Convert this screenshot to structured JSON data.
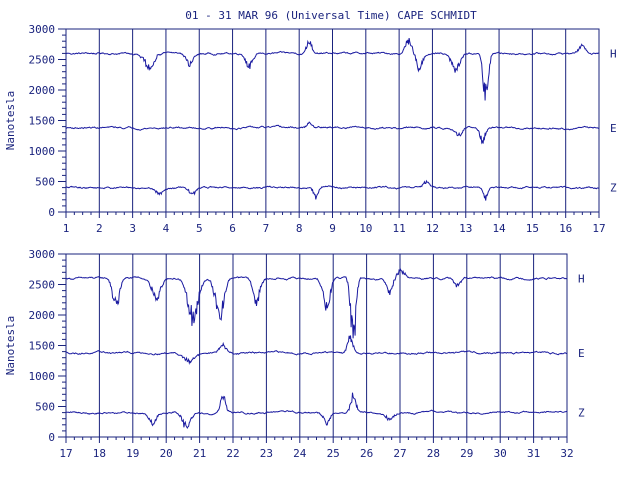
{
  "title": "01 - 31 MAR 96 (Universal Time) CAPE SCHMIDT",
  "colors": {
    "ink": "#1a237e",
    "trace": "#1a1aa0",
    "background": "#ffffff"
  },
  "chart_data": [
    {
      "type": "line",
      "ylabel": "Nanotesla",
      "ylim": [
        0,
        3000
      ],
      "yticks": [
        "0",
        "500",
        "1000",
        "1500",
        "2000",
        "2500",
        "3000"
      ],
      "xlim": [
        1,
        17
      ],
      "xticks": [
        "1",
        "2",
        "3",
        "4",
        "5",
        "6",
        "7",
        "8",
        "9",
        "10",
        "11",
        "12",
        "13",
        "14",
        "15",
        "16",
        "17"
      ],
      "series": [
        {
          "name": "H",
          "baseline": 2600,
          "events": [
            {
              "day": 3.5,
              "depth": -280,
              "width": 0.3
            },
            {
              "day": 4.7,
              "depth": -200,
              "width": 0.2
            },
            {
              "day": 6.5,
              "depth": -250,
              "width": 0.2
            },
            {
              "day": 8.3,
              "depth": 300,
              "width": 0.15
            },
            {
              "day": 11.3,
              "depth": 300,
              "width": 0.2
            },
            {
              "day": 11.6,
              "depth": -300,
              "width": 0.2
            },
            {
              "day": 12.7,
              "depth": -350,
              "width": 0.25
            },
            {
              "day": 13.6,
              "depth": -900,
              "width": 0.15
            },
            {
              "day": 16.5,
              "depth": 150,
              "width": 0.2
            }
          ]
        },
        {
          "name": "E",
          "baseline": 1380,
          "events": [
            {
              "day": 8.3,
              "depth": 100,
              "width": 0.15
            },
            {
              "day": 12.8,
              "depth": -120,
              "width": 0.2
            },
            {
              "day": 13.5,
              "depth": -280,
              "width": 0.15
            }
          ]
        },
        {
          "name": "Z",
          "baseline": 400,
          "events": [
            {
              "day": 3.8,
              "depth": -120,
              "width": 0.2
            },
            {
              "day": 4.8,
              "depth": -150,
              "width": 0.2
            },
            {
              "day": 8.5,
              "depth": -200,
              "width": 0.15
            },
            {
              "day": 11.8,
              "depth": 120,
              "width": 0.2
            },
            {
              "day": 13.6,
              "depth": -250,
              "width": 0.15
            }
          ]
        }
      ]
    },
    {
      "type": "line",
      "ylabel": "Nanotesla",
      "ylim": [
        0,
        3000
      ],
      "yticks": [
        "0",
        "500",
        "1000",
        "1500",
        "2000",
        "2500",
        "3000"
      ],
      "xlim": [
        17,
        32
      ],
      "xticks": [
        "17",
        "18",
        "19",
        "20",
        "21",
        "22",
        "23",
        "24",
        "25",
        "26",
        "27",
        "28",
        "29",
        "30",
        "31",
        "32"
      ],
      "series": [
        {
          "name": "H",
          "baseline": 2600,
          "events": [
            {
              "day": 18.5,
              "depth": -550,
              "width": 0.2
            },
            {
              "day": 19.7,
              "depth": -400,
              "width": 0.25
            },
            {
              "day": 20.8,
              "depth": -800,
              "width": 0.3
            },
            {
              "day": 21.6,
              "depth": -700,
              "width": 0.25
            },
            {
              "day": 22.7,
              "depth": -450,
              "width": 0.2
            },
            {
              "day": 24.8,
              "depth": -600,
              "width": 0.2
            },
            {
              "day": 25.6,
              "depth": -1300,
              "width": 0.15
            },
            {
              "day": 26.7,
              "depth": -280,
              "width": 0.2
            },
            {
              "day": 27.0,
              "depth": 150,
              "width": 0.3
            },
            {
              "day": 28.7,
              "depth": -150,
              "width": 0.2
            }
          ]
        },
        {
          "name": "E",
          "baseline": 1380,
          "events": [
            {
              "day": 20.7,
              "depth": -150,
              "width": 0.3
            },
            {
              "day": 21.7,
              "depth": 150,
              "width": 0.2
            },
            {
              "day": 25.5,
              "depth": 300,
              "width": 0.15
            }
          ]
        },
        {
          "name": "Z",
          "baseline": 400,
          "events": [
            {
              "day": 19.6,
              "depth": -180,
              "width": 0.2
            },
            {
              "day": 20.6,
              "depth": -300,
              "width": 0.25
            },
            {
              "day": 21.7,
              "depth": 350,
              "width": 0.15
            },
            {
              "day": 24.8,
              "depth": -200,
              "width": 0.2
            },
            {
              "day": 25.6,
              "depth": 350,
              "width": 0.15
            },
            {
              "day": 26.7,
              "depth": -150,
              "width": 0.2
            }
          ]
        }
      ]
    }
  ]
}
